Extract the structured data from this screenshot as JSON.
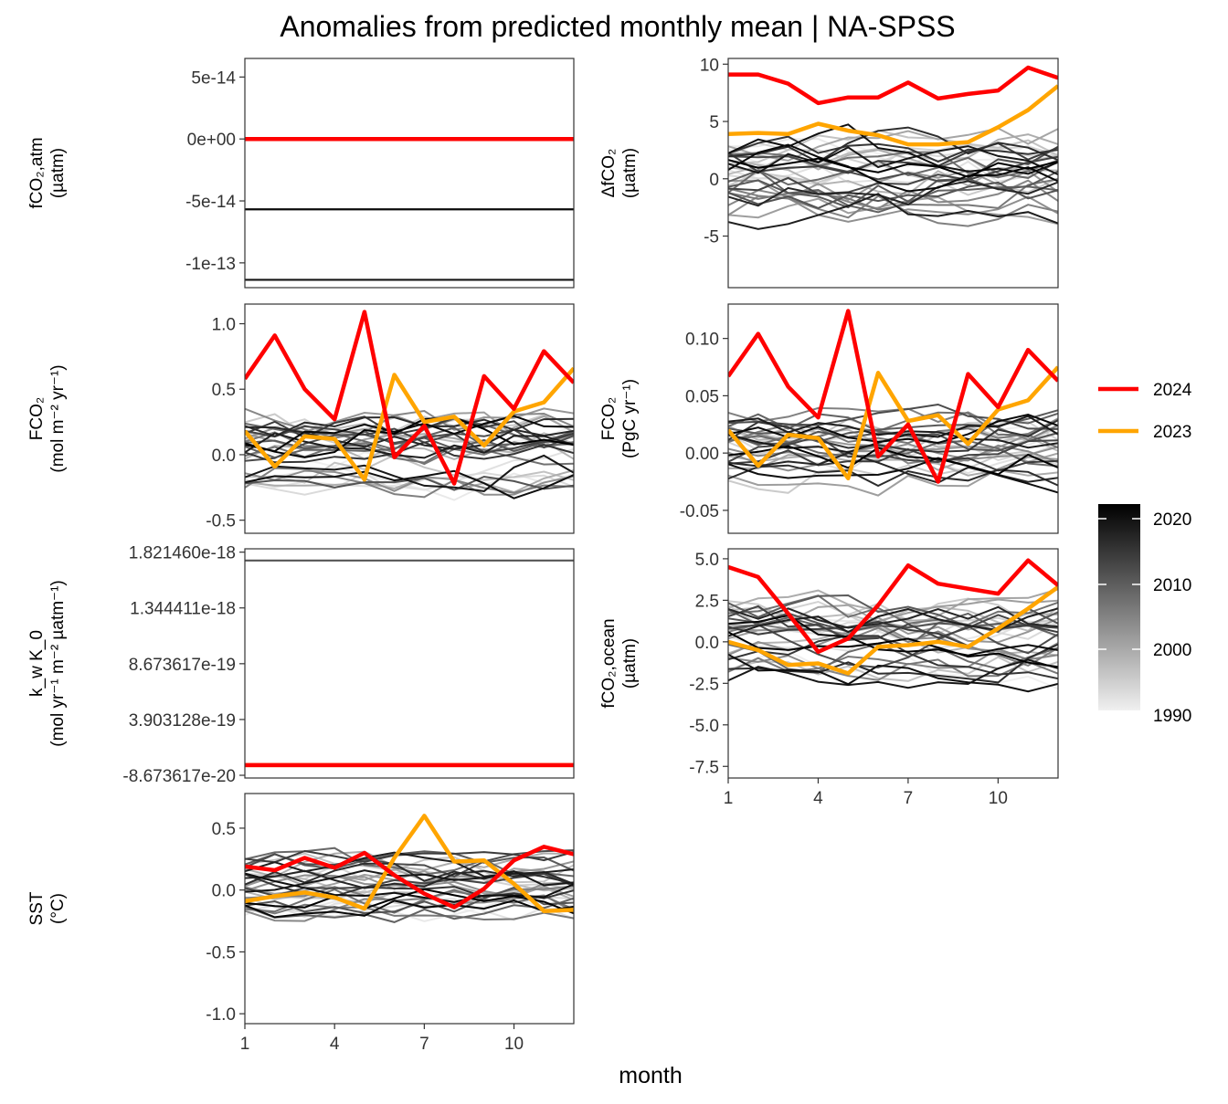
{
  "chart_data": {
    "type": "line",
    "title": "Anomalies from predicted monthly mean | NA-SPSS",
    "xlabel": "month",
    "x": [
      1,
      2,
      3,
      4,
      5,
      6,
      7,
      8,
      9,
      10,
      11,
      12
    ],
    "xticks": [
      1,
      4,
      7,
      10
    ],
    "legend": {
      "placement": "right",
      "highlight": [
        {
          "label": "2024",
          "color": "#ff0000"
        },
        {
          "label": "2023",
          "color": "#ffa500"
        }
      ],
      "colorbar": {
        "ticks": [
          "2020",
          "2010",
          "2000",
          "1990"
        ],
        "range": [
          1990,
          2022
        ],
        "low_color": "#f0f0f0",
        "high_color": "#000000"
      }
    },
    "panels": [
      {
        "id": "fco2atm",
        "ylabel_lines": [
          "fCO₂,atm",
          "(µatm)"
        ],
        "ylim": [
          -1.2e-13,
          6.5e-14
        ],
        "yticks": [
          5e-14,
          0,
          -5e-14,
          -1e-13
        ],
        "ytick_labels": [
          "5e-14",
          "0e+00",
          "-5e-14",
          "-1e-13"
        ],
        "constant_lines": [
          {
            "y": -1.137e-13,
            "color": "#151515"
          },
          {
            "y": -5.68e-14,
            "color": "#0a0a0a"
          }
        ],
        "y2024": [
          0,
          0,
          0,
          0,
          0,
          0,
          0,
          0,
          0,
          0,
          0,
          0
        ],
        "y2023": [
          0,
          0,
          0,
          0,
          0,
          0,
          0,
          0,
          0,
          0,
          0,
          0
        ],
        "background_spread": 0
      },
      {
        "id": "dfco2",
        "ylabel_lines": [
          "ΔfCO₂",
          "(µatm)"
        ],
        "ylim": [
          -9.5,
          10.5
        ],
        "yticks": [
          10,
          5,
          0,
          -5
        ],
        "ytick_labels": [
          "10",
          "5",
          "0",
          "-5"
        ],
        "y2024": [
          9.1,
          9.1,
          8.3,
          6.6,
          7.1,
          7.1,
          8.4,
          7.0,
          7.4,
          7.7,
          9.7,
          8.8
        ],
        "y2023": [
          3.9,
          4.0,
          3.9,
          4.8,
          4.2,
          3.8,
          3.0,
          3.0,
          3.2,
          4.5,
          6.0,
          8.1
        ],
        "background_spread": 3.2
      },
      {
        "id": "fco2flux",
        "ylabel_lines": [
          "FCO₂",
          "(mol m⁻² yr⁻¹)"
        ],
        "ylim": [
          -0.6,
          1.15
        ],
        "yticks": [
          1.0,
          0.5,
          0.0,
          -0.5
        ],
        "ytick_labels": [
          "1.0",
          "0.5",
          "0.0",
          "-0.5"
        ],
        "y2024": [
          0.58,
          0.91,
          0.5,
          0.27,
          1.09,
          -0.02,
          0.22,
          -0.22,
          0.6,
          0.35,
          0.79,
          0.55
        ],
        "y2023": [
          0.18,
          -0.09,
          0.14,
          0.12,
          -0.19,
          0.61,
          0.25,
          0.29,
          0.07,
          0.33,
          0.4,
          0.66
        ],
        "background_spread": 0.25
      },
      {
        "id": "fco2pg",
        "ylabel_lines": [
          "FCO₂",
          "(PgC yr⁻¹)"
        ],
        "ylim": [
          -0.07,
          0.13
        ],
        "yticks": [
          0.1,
          0.05,
          0.0,
          -0.05
        ],
        "ytick_labels": [
          "0.10",
          "0.05",
          "0.00",
          "-0.05"
        ],
        "y2024": [
          0.067,
          0.104,
          0.058,
          0.031,
          0.124,
          -0.003,
          0.025,
          -0.025,
          0.069,
          0.04,
          0.09,
          0.063
        ],
        "y2023": [
          0.02,
          -0.011,
          0.016,
          0.013,
          -0.022,
          0.07,
          0.028,
          0.033,
          0.008,
          0.038,
          0.046,
          0.075
        ],
        "background_spread": 0.029
      },
      {
        "id": "kwk0",
        "ylabel_lines": [
          "k_w K_0",
          "(mol yr⁻¹ m⁻² µatm⁻¹)"
        ],
        "ylim": [
          -1.1e-19,
          1.85e-18
        ],
        "yticks": [
          1.82146e-18,
          1.344411e-18,
          8.673617e-19,
          3.903128e-19,
          -8.673617e-20
        ],
        "ytick_labels": [
          "1.821460e-18",
          "1.344411e-18",
          "8.673617e-19",
          "3.903128e-19",
          "-8.673617e-20"
        ],
        "constant_lines": [
          {
            "y": 1.75e-18,
            "color": "#555555"
          }
        ],
        "y2024": [
          0,
          0,
          0,
          0,
          0,
          0,
          0,
          0,
          0,
          0,
          0,
          0
        ],
        "y2023": [
          0,
          0,
          0,
          0,
          0,
          0,
          0,
          0,
          0,
          0,
          0,
          0
        ],
        "background_spread": 0
      },
      {
        "id": "fco2ocean",
        "ylabel_lines": [
          "fCO₂,ocean",
          "(µatm)"
        ],
        "ylim": [
          -8.2,
          5.6
        ],
        "yticks": [
          5.0,
          2.5,
          0.0,
          -2.5,
          -5.0,
          -7.5
        ],
        "ytick_labels": [
          "5.0",
          "2.5",
          "0.0",
          "-2.5",
          "-5.0",
          "-7.5"
        ],
        "y2024": [
          4.5,
          3.9,
          1.7,
          -0.6,
          0.2,
          2.2,
          4.6,
          3.5,
          3.2,
          2.9,
          4.9,
          3.4
        ],
        "y2023": [
          0.0,
          -0.5,
          -1.4,
          -1.3,
          -1.9,
          -0.3,
          -0.2,
          0.0,
          -0.3,
          0.8,
          2.0,
          3.3
        ],
        "background_spread": 2.0
      },
      {
        "id": "sst",
        "ylabel_lines": [
          "SST",
          "(°C)"
        ],
        "ylim": [
          -1.08,
          0.78
        ],
        "yticks": [
          0.5,
          0.0,
          -0.5,
          -1.0
        ],
        "ytick_labels": [
          "0.5",
          "0.0",
          "-0.5",
          "-1.0"
        ],
        "y2024": [
          0.19,
          0.16,
          0.26,
          0.18,
          0.3,
          0.12,
          -0.03,
          -0.14,
          0.01,
          0.24,
          0.35,
          0.29
        ],
        "y2023": [
          -0.09,
          -0.05,
          -0.02,
          -0.06,
          -0.15,
          0.26,
          0.6,
          0.23,
          0.24,
          0.05,
          -0.17,
          -0.16
        ],
        "background_spread": 0.22
      }
    ]
  }
}
